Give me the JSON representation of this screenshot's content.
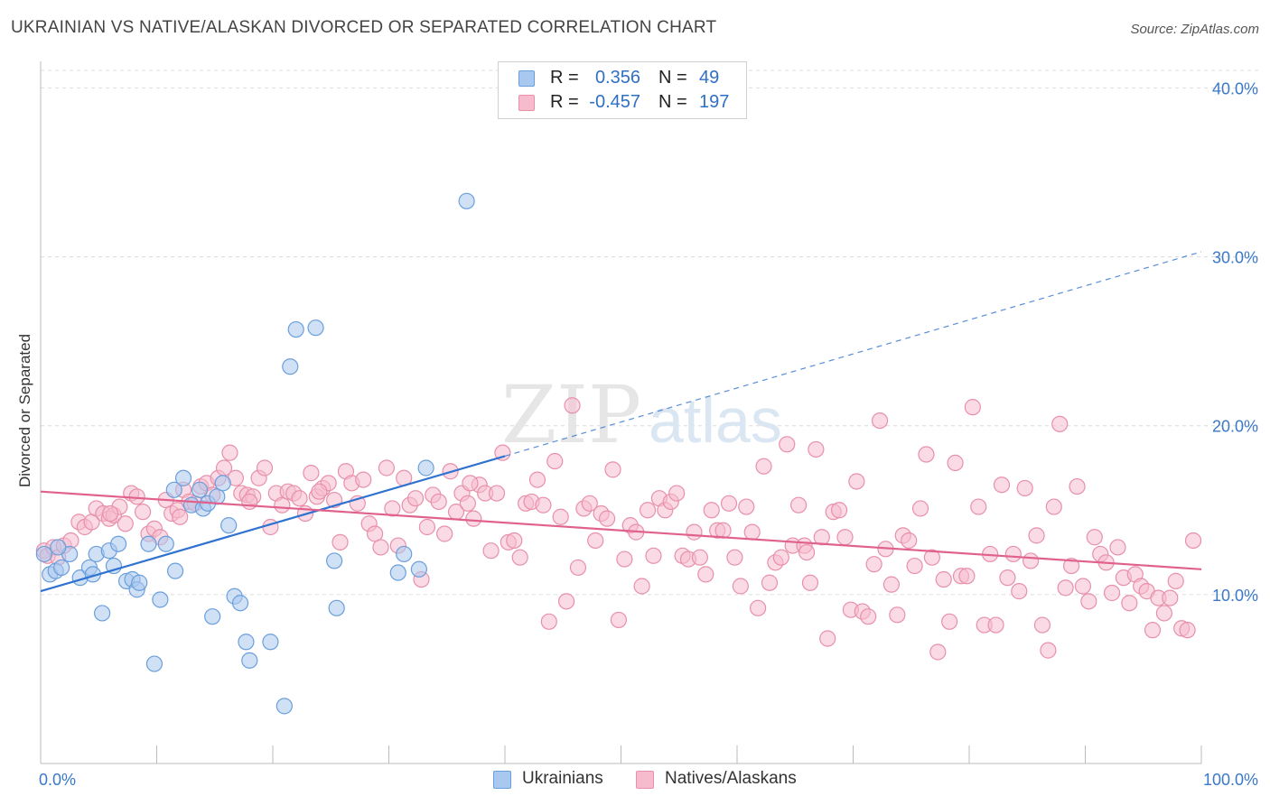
{
  "header": {
    "title": "UKRAINIAN VS NATIVE/ALASKAN DIVORCED OR SEPARATED CORRELATION CHART",
    "source": "Source: ZipAtlas.com"
  },
  "watermark": {
    "zip": "ZIP",
    "atlas": "atlas"
  },
  "legend": {
    "rows": [
      {
        "r_label": "R =",
        "r_value": "0.356",
        "n_label": "N =",
        "n_value": "49"
      },
      {
        "r_label": "R =",
        "r_value": "-0.457",
        "n_label": "N =",
        "n_value": "197"
      }
    ]
  },
  "colors": {
    "blue_fill": "#a9c8ef",
    "blue_stroke": "#6a9fdc",
    "blue_line": "#2f72d0",
    "pink_fill": "#f6bccd",
    "pink_stroke": "#e890aa",
    "pink_line": "#e0628c",
    "tick_label": "#3a78c9",
    "grid": "#dcdcdc"
  },
  "chart_data": {
    "type": "scatter",
    "title": "UKRAINIAN VS NATIVE/ALASKAN DIVORCED OR SEPARATED CORRELATION CHART",
    "ylabel": "Divorced or Separated",
    "xlabel": "",
    "xlim": [
      0,
      100
    ],
    "ylim": [
      0,
      42
    ],
    "x_tick_labels": [
      "0.0%",
      "100.0%"
    ],
    "y_ticks": [
      10,
      20,
      30,
      40
    ],
    "y_tick_labels": [
      "10.0%",
      "20.0%",
      "30.0%",
      "40.0%"
    ],
    "grid": true,
    "legend_position": "bottom",
    "series": [
      {
        "name": "Ukrainians",
        "color": "#a9c8ef",
        "trend": {
          "x": [
            0,
            40
          ],
          "y": [
            10.2,
            18.2
          ],
          "dashed_extension_to": [
            100,
            30.3
          ]
        },
        "points": [
          [
            0.3,
            12.4
          ],
          [
            0.8,
            11.2
          ],
          [
            1.3,
            11.4
          ],
          [
            1.8,
            11.6
          ],
          [
            2.5,
            12.4
          ],
          [
            3.4,
            11.0
          ],
          [
            4.2,
            11.6
          ],
          [
            4.5,
            11.2
          ],
          [
            4.8,
            12.4
          ],
          [
            5.3,
            8.9
          ],
          [
            5.9,
            12.6
          ],
          [
            6.3,
            11.7
          ],
          [
            6.7,
            13.0
          ],
          [
            7.4,
            10.8
          ],
          [
            7.9,
            10.9
          ],
          [
            8.3,
            10.3
          ],
          [
            8.5,
            10.7
          ],
          [
            9.3,
            13.0
          ],
          [
            9.8,
            5.9
          ],
          [
            10.3,
            9.7
          ],
          [
            10.8,
            13.0
          ],
          [
            11.5,
            16.2
          ],
          [
            11.6,
            11.4
          ],
          [
            12.3,
            16.9
          ],
          [
            13.0,
            15.3
          ],
          [
            13.7,
            16.2
          ],
          [
            14.0,
            15.1
          ],
          [
            14.4,
            15.4
          ],
          [
            14.8,
            8.7
          ],
          [
            15.2,
            15.8
          ],
          [
            15.7,
            16.6
          ],
          [
            16.2,
            14.1
          ],
          [
            16.7,
            9.9
          ],
          [
            17.2,
            9.5
          ],
          [
            17.7,
            7.2
          ],
          [
            18.0,
            6.1
          ],
          [
            19.8,
            7.2
          ],
          [
            21.0,
            3.4
          ],
          [
            21.5,
            23.5
          ],
          [
            22.0,
            25.7
          ],
          [
            23.7,
            25.8
          ],
          [
            25.3,
            12.0
          ],
          [
            25.5,
            9.2
          ],
          [
            30.8,
            11.3
          ],
          [
            31.3,
            12.4
          ],
          [
            32.6,
            11.5
          ],
          [
            33.2,
            17.5
          ],
          [
            36.7,
            33.3
          ],
          [
            1.5,
            12.8
          ]
        ]
      },
      {
        "name": "Natives/Alaskans",
        "color": "#f6bccd",
        "trend": {
          "x": [
            0,
            100
          ],
          "y": [
            16.1,
            11.5
          ]
        },
        "points": [
          [
            0.3,
            12.6
          ],
          [
            0.6,
            12.3
          ],
          [
            1.1,
            12.8
          ],
          [
            1.5,
            12.2
          ],
          [
            2.0,
            12.9
          ],
          [
            2.6,
            13.2
          ],
          [
            3.3,
            14.3
          ],
          [
            3.8,
            14.0
          ],
          [
            4.4,
            14.3
          ],
          [
            4.8,
            15.1
          ],
          [
            5.4,
            14.8
          ],
          [
            5.9,
            14.5
          ],
          [
            6.3,
            14.7
          ],
          [
            6.8,
            15.2
          ],
          [
            7.3,
            14.2
          ],
          [
            7.8,
            16.0
          ],
          [
            8.3,
            15.8
          ],
          [
            8.8,
            14.9
          ],
          [
            9.3,
            13.6
          ],
          [
            9.8,
            13.9
          ],
          [
            10.3,
            13.4
          ],
          [
            10.8,
            15.6
          ],
          [
            11.3,
            14.8
          ],
          [
            11.8,
            15.0
          ],
          [
            12.3,
            16.2
          ],
          [
            12.8,
            15.5
          ],
          [
            13.3,
            15.4
          ],
          [
            13.8,
            16.4
          ],
          [
            14.3,
            16.6
          ],
          [
            14.8,
            15.9
          ],
          [
            15.3,
            16.9
          ],
          [
            15.8,
            17.5
          ],
          [
            16.3,
            18.4
          ],
          [
            16.8,
            16.9
          ],
          [
            17.3,
            16.0
          ],
          [
            17.8,
            15.9
          ],
          [
            18.3,
            15.8
          ],
          [
            18.8,
            16.9
          ],
          [
            19.3,
            17.5
          ],
          [
            19.8,
            14.0
          ],
          [
            20.3,
            16.0
          ],
          [
            20.8,
            15.3
          ],
          [
            21.3,
            16.1
          ],
          [
            21.8,
            16.0
          ],
          [
            22.3,
            15.7
          ],
          [
            22.8,
            14.8
          ],
          [
            23.3,
            17.2
          ],
          [
            23.8,
            15.8
          ],
          [
            24.3,
            16.3
          ],
          [
            24.8,
            16.6
          ],
          [
            25.3,
            15.6
          ],
          [
            25.8,
            13.1
          ],
          [
            26.3,
            17.3
          ],
          [
            26.8,
            16.6
          ],
          [
            27.3,
            15.4
          ],
          [
            27.8,
            16.8
          ],
          [
            28.3,
            14.2
          ],
          [
            28.8,
            13.6
          ],
          [
            29.3,
            12.8
          ],
          [
            29.8,
            17.5
          ],
          [
            30.3,
            15.1
          ],
          [
            30.8,
            12.9
          ],
          [
            31.3,
            16.9
          ],
          [
            31.8,
            15.3
          ],
          [
            32.3,
            15.7
          ],
          [
            32.8,
            10.9
          ],
          [
            33.3,
            14.0
          ],
          [
            33.8,
            15.9
          ],
          [
            34.3,
            15.5
          ],
          [
            34.8,
            13.6
          ],
          [
            35.3,
            17.3
          ],
          [
            35.8,
            14.9
          ],
          [
            36.3,
            16.0
          ],
          [
            36.8,
            15.4
          ],
          [
            37.3,
            14.5
          ],
          [
            37.8,
            16.5
          ],
          [
            38.3,
            16.0
          ],
          [
            38.8,
            12.6
          ],
          [
            39.3,
            16.0
          ],
          [
            39.8,
            18.4
          ],
          [
            40.3,
            13.1
          ],
          [
            40.8,
            13.2
          ],
          [
            41.3,
            12.2
          ],
          [
            41.8,
            15.4
          ],
          [
            42.3,
            15.5
          ],
          [
            42.8,
            16.8
          ],
          [
            43.3,
            15.3
          ],
          [
            43.8,
            8.4
          ],
          [
            44.3,
            17.9
          ],
          [
            44.8,
            14.6
          ],
          [
            45.3,
            9.6
          ],
          [
            45.8,
            21.2
          ],
          [
            46.3,
            11.6
          ],
          [
            46.8,
            15.1
          ],
          [
            47.3,
            15.4
          ],
          [
            47.8,
            13.2
          ],
          [
            48.3,
            14.8
          ],
          [
            48.8,
            14.5
          ],
          [
            49.3,
            17.4
          ],
          [
            49.8,
            8.5
          ],
          [
            50.3,
            12.1
          ],
          [
            50.8,
            14.1
          ],
          [
            51.3,
            13.7
          ],
          [
            51.8,
            10.5
          ],
          [
            52.3,
            15.0
          ],
          [
            52.8,
            12.3
          ],
          [
            53.3,
            15.7
          ],
          [
            53.8,
            15.0
          ],
          [
            54.3,
            15.5
          ],
          [
            54.8,
            16.0
          ],
          [
            55.3,
            12.3
          ],
          [
            55.8,
            12.1
          ],
          [
            56.3,
            13.7
          ],
          [
            56.8,
            12.2
          ],
          [
            57.3,
            11.2
          ],
          [
            57.8,
            15.0
          ],
          [
            58.3,
            13.8
          ],
          [
            58.8,
            13.8
          ],
          [
            59.3,
            15.4
          ],
          [
            59.8,
            12.2
          ],
          [
            60.3,
            10.5
          ],
          [
            60.8,
            15.2
          ],
          [
            61.3,
            13.7
          ],
          [
            61.8,
            9.2
          ],
          [
            62.3,
            17.6
          ],
          [
            62.8,
            10.7
          ],
          [
            63.3,
            11.9
          ],
          [
            63.8,
            12.2
          ],
          [
            64.3,
            18.9
          ],
          [
            64.8,
            12.9
          ],
          [
            65.3,
            15.3
          ],
          [
            65.8,
            12.9
          ],
          [
            66.3,
            10.7
          ],
          [
            66.8,
            18.6
          ],
          [
            67.3,
            13.4
          ],
          [
            67.8,
            7.4
          ],
          [
            68.3,
            14.9
          ],
          [
            68.8,
            15.0
          ],
          [
            69.3,
            13.4
          ],
          [
            69.8,
            9.1
          ],
          [
            70.3,
            16.7
          ],
          [
            70.8,
            9.0
          ],
          [
            71.3,
            8.7
          ],
          [
            71.8,
            11.8
          ],
          [
            72.3,
            20.3
          ],
          [
            72.8,
            12.7
          ],
          [
            73.3,
            10.6
          ],
          [
            73.8,
            8.8
          ],
          [
            74.3,
            13.5
          ],
          [
            74.8,
            13.2
          ],
          [
            75.3,
            11.7
          ],
          [
            75.8,
            15.1
          ],
          [
            76.3,
            18.3
          ],
          [
            76.8,
            12.2
          ],
          [
            77.3,
            6.6
          ],
          [
            77.8,
            10.9
          ],
          [
            78.3,
            8.4
          ],
          [
            78.8,
            17.8
          ],
          [
            79.3,
            11.1
          ],
          [
            79.8,
            11.1
          ],
          [
            80.3,
            21.1
          ],
          [
            80.8,
            15.2
          ],
          [
            81.3,
            8.2
          ],
          [
            81.8,
            12.4
          ],
          [
            82.3,
            8.2
          ],
          [
            82.8,
            16.5
          ],
          [
            83.3,
            11.0
          ],
          [
            83.8,
            12.4
          ],
          [
            84.3,
            10.2
          ],
          [
            84.8,
            16.3
          ],
          [
            85.3,
            12.0
          ],
          [
            85.8,
            13.5
          ],
          [
            86.3,
            8.2
          ],
          [
            86.8,
            6.7
          ],
          [
            87.3,
            15.2
          ],
          [
            87.8,
            20.1
          ],
          [
            88.3,
            10.4
          ],
          [
            88.8,
            11.7
          ],
          [
            89.3,
            16.4
          ],
          [
            89.8,
            10.5
          ],
          [
            90.3,
            9.6
          ],
          [
            90.8,
            13.4
          ],
          [
            91.3,
            12.4
          ],
          [
            91.8,
            11.9
          ],
          [
            92.3,
            10.1
          ],
          [
            92.8,
            12.8
          ],
          [
            93.3,
            11.0
          ],
          [
            93.8,
            9.5
          ],
          [
            94.3,
            11.2
          ],
          [
            94.8,
            10.5
          ],
          [
            95.3,
            10.2
          ],
          [
            95.8,
            7.9
          ],
          [
            96.3,
            9.8
          ],
          [
            96.8,
            8.9
          ],
          [
            97.3,
            9.8
          ],
          [
            97.8,
            10.8
          ],
          [
            98.3,
            8.0
          ],
          [
            98.8,
            7.9
          ],
          [
            99.3,
            13.2
          ],
          [
            66.0,
            12.5
          ],
          [
            37.0,
            16.6
          ],
          [
            24.0,
            16.1
          ],
          [
            18.0,
            15.5
          ],
          [
            12.0,
            14.6
          ],
          [
            6.0,
            14.8
          ]
        ]
      }
    ]
  }
}
